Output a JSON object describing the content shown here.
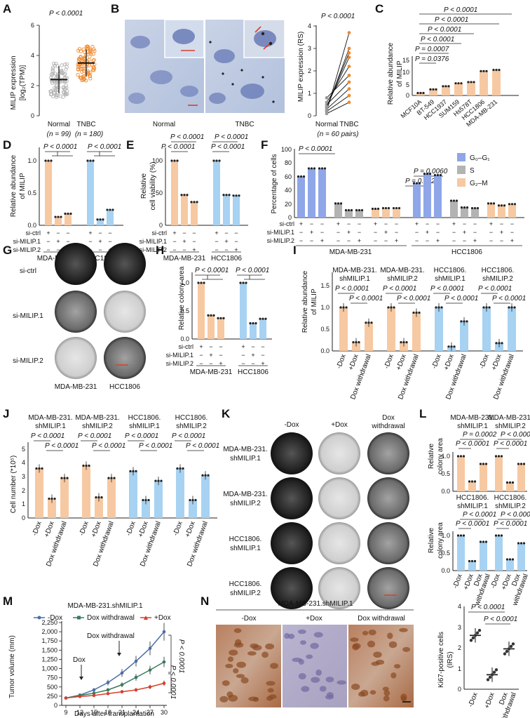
{
  "colors": {
    "peach": "#f6c9a2",
    "blue": "#a7d2f2",
    "purple": "#8fa6e8",
    "gray": "#b3b3b3",
    "orange": "#f08a30",
    "darkblue": "#4b6fa8",
    "red": "#d6402b"
  },
  "panels": {
    "A": {
      "label": "A",
      "ylabel1": "MILIP expression",
      "ylabel2": "[log₂(TPM)]",
      "pvalue": "P < 0.0001",
      "ticks": [
        "0",
        "2",
        "4",
        "6"
      ],
      "groups": [
        "Normal",
        "TNBC"
      ],
      "ns": [
        "(n = 99)",
        "(n = 180)"
      ]
    },
    "B": {
      "label": "B",
      "img_labels": [
        "Normal",
        "TNBC"
      ],
      "ylabel": "MILIP expression (RS)",
      "pvalue": "P < 0.0001",
      "ticks": [
        "0",
        "1",
        "2",
        "3",
        "4"
      ],
      "groups": [
        "Normal",
        "TNBC"
      ],
      "pairs": "(n = 60 pairs)"
    },
    "C": {
      "label": "C",
      "ylabel1": "Relative abundance",
      "ylabel2": "of MILIP",
      "ticks": [
        "0",
        "5",
        "10",
        "15"
      ],
      "pvalues": [
        "P < 0.0001",
        "P < 0.0001",
        "P < 0.0001",
        "P < 0.0001",
        "P = 0.0007",
        "P = 0.0376"
      ],
      "categories": [
        "MCF10A",
        "BT-549",
        "HCC1937",
        "SUM159",
        "Hs578T",
        "HCC1806",
        "MDA-MB-231"
      ]
    },
    "D": {
      "label": "D",
      "ylabel1": "Relative abundance",
      "ylabel2": "of MILIP",
      "ticks": [
        "0.0",
        "0.5",
        "1.0"
      ],
      "pvalues": [
        "P < 0.0001",
        "P < 0.0001"
      ]
    },
    "E": {
      "label": "E",
      "ylabel1": "Relative",
      "ylabel2": "cell viability (%)",
      "ticks": [
        "0",
        "50",
        "100"
      ],
      "pvalues": [
        "P < 0.0001",
        "P < 0.0001",
        "P < 0.0001",
        "P < 0.0001"
      ]
    },
    "F": {
      "label": "F",
      "ylabel": "Percentage of cells",
      "ticks": [
        "0",
        "20",
        "40",
        "60",
        "80",
        "100"
      ],
      "pvalues": [
        "P < 0.0001",
        "P = 0.0060",
        "P = 0.0027"
      ],
      "legend": [
        "G₀–G₁",
        "S",
        "G₂–M"
      ]
    },
    "G": {
      "label": "G",
      "rows": [
        "si-ctrl",
        "si-MILIP.1",
        "si-MILIP.2"
      ],
      "cols": [
        "MDA-MB-231",
        "HCC1806"
      ]
    },
    "H": {
      "label": "H",
      "ylabel": "Relative colony area",
      "ticks": [
        "0.0",
        "0.5",
        "1.0"
      ],
      "pvalues": [
        "P < 0.0001",
        "P < 0.0001"
      ]
    },
    "I": {
      "label": "I",
      "ylabel1": "Relative abundance",
      "ylabel2": "of MILIP",
      "ticks": [
        "0.0",
        "0.5",
        "1.0",
        "1.5"
      ],
      "pvalues": [
        "P < 0.0001",
        "P < 0.0001",
        "P < 0.0001",
        "P < 0.0001",
        "P < 0.0001",
        "P < 0.0001",
        "P < 0.0001",
        "P < 0.0001"
      ]
    },
    "J": {
      "label": "J",
      "ylabel": "Cell number (*10⁵)",
      "ticks": [
        "0",
        "1",
        "2",
        "3",
        "4",
        "5"
      ],
      "pvalues": [
        "P < 0.0001",
        "P < 0.0001",
        "P < 0.0001",
        "P < 0.0001",
        "P < 0.0001",
        "P < 0.0001",
        "P < 0.0001",
        "P < 0.0001"
      ]
    },
    "K": {
      "label": "K",
      "cols": [
        "-Dox",
        "+Dox",
        "Dox",
        "withdrawal"
      ],
      "rows": [
        [
          "MDA-MB-231.",
          "shMILIP.1"
        ],
        [
          "MDA-MB-231.",
          "shMILIP.2"
        ],
        [
          "HCC1806.",
          "shMILIP.1"
        ],
        [
          "HCC1806.",
          "shMILIP.2"
        ]
      ]
    },
    "L": {
      "label": "L",
      "ylabel1": "Relative",
      "ylabel2": "colony area",
      "ticks": [
        "0.0",
        "0.5",
        "1.0"
      ],
      "top_pvalues": [
        "P = 0.0002",
        "P < 0.0001",
        "P < 0.0001",
        "P < 0.0001"
      ],
      "bottom_pvalues": [
        "P < 0.0001",
        "P < 0.0001",
        "P < 0.0001",
        "P < 0.0001"
      ]
    },
    "M": {
      "label": "M",
      "title": "MDA-MB-231.shMILIP.1",
      "legend": [
        "-Dox",
        "Dox withdrawal",
        "+Dox"
      ],
      "ylabel": "Tumor volume (mm)",
      "xlabel": "Days after transplantation",
      "yticks": [
        "0",
        "250",
        "500",
        "750",
        "1,000",
        "1,250",
        "1,500",
        "1,750",
        "2,000",
        "2,250"
      ],
      "xticks": [
        "9",
        "12",
        "15",
        "18",
        "21",
        "24",
        "27",
        "30"
      ],
      "annot": [
        "Dox",
        "Dox withdrawal"
      ],
      "pvalues": [
        "P < 0.0001",
        "P < 0.0001"
      ]
    },
    "N": {
      "label": "N",
      "title": "MDA-MB-231.shMILIP.1",
      "img_labels": [
        "-Dox",
        "+Dox",
        "Dox withdrawal"
      ],
      "ylabel1": "Ki67-positive cells",
      "ylabel2": "(IRS)",
      "ticks": [
        "0",
        "1",
        "2",
        "3",
        "4"
      ],
      "pvalues": [
        "P < 0.0001",
        "P < 0.0001"
      ]
    }
  },
  "labels": {
    "si_ctrl": "si-ctrl",
    "si1": "si-MILIP.1",
    "si2": "si-MILIP.2",
    "mda": "MDA-MB-231",
    "hcc": "HCC1806",
    "plus": "+",
    "minus": "−",
    "dox_minus": "-Dox",
    "dox_plus": "+Dox",
    "dox_wd": "Dox withdrawal",
    "dox": "Dox",
    "withdrawal": "withdrawal",
    "mda_pre": "MDA-MB-231.",
    "hcc_pre": "HCC1806.",
    "sh1": "shMILIP.1",
    "sh2": "shMILIP.2"
  },
  "chart_data": [
    {
      "panel": "A",
      "type": "scatter",
      "categories": [
        "Normal",
        "TNBC"
      ],
      "values": [
        2.4,
        3.5
      ],
      "sd": [
        0.9,
        0.9
      ],
      "ylim": [
        0,
        6
      ],
      "n": [
        99,
        180
      ]
    },
    {
      "panel": "B",
      "type": "line",
      "categories": [
        "Normal",
        "TNBC"
      ],
      "note": "paired RS values",
      "normal_values": [
        0.2,
        0.3,
        0.4,
        0.6,
        0.8,
        0.5,
        0.3,
        0.2,
        0.1,
        0.4
      ],
      "tnbc_values": [
        3.7,
        3.0,
        2.6,
        2.2,
        1.8,
        1.5,
        1.2,
        0.9,
        0.6,
        2.8
      ],
      "ylim": [
        0,
        4
      ]
    },
    {
      "panel": "C",
      "type": "bar",
      "categories": [
        "MCF10A",
        "BT-549",
        "HCC1937",
        "SUM159",
        "Hs578T",
        "HCC1806",
        "MDA-MB-231"
      ],
      "values": [
        1,
        2.5,
        3.8,
        5,
        5.5,
        10,
        10.5
      ],
      "ylim": [
        0,
        15
      ]
    },
    {
      "panel": "D",
      "type": "bar",
      "categories": [
        "MDA-MB-231 si-ctrl",
        "MDA-MB-231 si-MILIP.1",
        "MDA-MB-231 si-MILIP.2",
        "HCC1806 si-ctrl",
        "HCC1806 si-MILIP.1",
        "HCC1806 si-MILIP.2"
      ],
      "values": [
        1.0,
        0.13,
        0.18,
        1.0,
        0.09,
        0.24
      ],
      "ylim": [
        0,
        1.2
      ]
    },
    {
      "panel": "E",
      "type": "bar",
      "categories": [
        "MDA-MB-231 si-ctrl",
        "MDA-MB-231 si-MILIP.1",
        "MDA-MB-231 si-MILIP.2",
        "HCC1806 si-ctrl",
        "HCC1806 si-MILIP.1",
        "HCC1806 si-MILIP.2"
      ],
      "values": [
        100,
        47,
        36,
        100,
        47,
        46
      ],
      "ylim": [
        0,
        120
      ]
    },
    {
      "panel": "F",
      "type": "bar",
      "series": [
        {
          "name": "G0-G1",
          "values": [
            61,
            73,
            73,
            51,
            65,
            63
          ]
        },
        {
          "name": "S",
          "values": [
            21,
            11,
            11,
            25,
            15,
            14
          ]
        },
        {
          "name": "G2-M",
          "values": [
            13,
            14,
            14,
            21,
            18,
            20
          ]
        }
      ],
      "ylim": [
        0,
        100
      ]
    },
    {
      "panel": "H",
      "type": "bar",
      "categories": [
        "MDA-MB-231 si-ctrl",
        "MDA-MB-231 si-MILIP.1",
        "MDA-MB-231 si-MILIP.2",
        "HCC1806 si-ctrl",
        "HCC1806 si-MILIP.1",
        "HCC1806 si-MILIP.2"
      ],
      "values": [
        1.0,
        0.42,
        0.37,
        1.0,
        0.28,
        0.36
      ],
      "ylim": [
        0,
        1.2
      ]
    },
    {
      "panel": "I",
      "type": "bar",
      "groups": [
        "MDA-MB-231.shMILIP.1",
        "MDA-MB-231.shMILIP.2",
        "HCC1806.shMILIP.1",
        "HCC1806.shMILIP.2"
      ],
      "categories": [
        "-Dox",
        "+Dox",
        "Dox withdrawal"
      ],
      "values": [
        [
          1.0,
          0.2,
          0.65
        ],
        [
          1.0,
          0.2,
          0.88
        ],
        [
          1.0,
          0.1,
          0.68
        ],
        [
          1.0,
          0.18,
          1.0
        ]
      ],
      "ylim": [
        0,
        1.5
      ]
    },
    {
      "panel": "J",
      "type": "bar",
      "groups": [
        "MDA-MB-231.shMILIP.1",
        "MDA-MB-231.shMILIP.2",
        "HCC1806.shMILIP.1",
        "HCC1806.shMILIP.2"
      ],
      "categories": [
        "-Dox",
        "+Dox",
        "Dox withdrawal"
      ],
      "values": [
        [
          3.6,
          1.4,
          2.9
        ],
        [
          3.8,
          1.5,
          2.9
        ],
        [
          3.4,
          1.3,
          2.7
        ],
        [
          3.6,
          1.3,
          3.1
        ]
      ],
      "ylim": [
        0,
        5
      ]
    },
    {
      "panel": "L",
      "type": "bar",
      "groups": [
        "MDA-MB-231.shMILIP.1",
        "MDA-MB-231.shMILIP.2",
        "HCC1806.shMILIP.1",
        "HCC1806.shMILIP.2"
      ],
      "categories": [
        "-Dox",
        "+Dox",
        "Dox withdrawal"
      ],
      "values": [
        [
          1.0,
          0.28,
          0.78
        ],
        [
          1.0,
          0.25,
          0.78
        ],
        [
          1.0,
          0.27,
          0.82
        ],
        [
          1.0,
          0.32,
          0.78
        ]
      ],
      "ylim": [
        0,
        1.2
      ]
    },
    {
      "panel": "M",
      "type": "line",
      "x": [
        9,
        12,
        15,
        18,
        21,
        24,
        27,
        30
      ],
      "series": [
        {
          "name": "-Dox",
          "values": [
            200,
            280,
            420,
            620,
            880,
            1200,
            1550,
            2000
          ]
        },
        {
          "name": "Dox withdrawal",
          "values": [
            200,
            270,
            330,
            420,
            560,
            760,
            960,
            1180
          ]
        },
        {
          "name": "+Dox",
          "values": [
            200,
            240,
            270,
            320,
            370,
            420,
            500,
            600
          ]
        }
      ],
      "ylim": [
        0,
        2250
      ],
      "xlabel": "Days after transplantation",
      "ylabel": "Tumor volume (mm)"
    },
    {
      "panel": "N",
      "type": "scatter",
      "categories": [
        "-Dox",
        "+Dox",
        "Dox withdrawal"
      ],
      "values": [
        2.6,
        0.7,
        1.95
      ],
      "ylim": [
        0,
        4
      ]
    }
  ]
}
